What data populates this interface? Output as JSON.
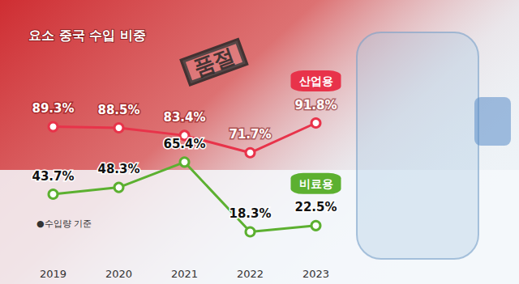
{
  "chart_data": {
    "type": "line",
    "title": "요소 중국 수입 비중",
    "annotations": [
      "●수입량 기준",
      "품절"
    ],
    "categories": [
      "2019",
      "2020",
      "2021",
      "2022",
      "2023"
    ],
    "series": [
      {
        "name": "산업용",
        "color": "#e8334a",
        "values": [
          89.3,
          88.5,
          83.4,
          71.7,
          91.8
        ],
        "value_labels": [
          "89.3%",
          "88.5%",
          "83.4%",
          "71.7%",
          "91.8%"
        ]
      },
      {
        "name": "비료용",
        "color": "#5cb030",
        "values": [
          43.7,
          48.3,
          65.4,
          18.3,
          22.5
        ],
        "value_labels": [
          "43.7%",
          "48.3%",
          "65.4%",
          "18.3%",
          "22.5%"
        ]
      }
    ],
    "ylim": [
      0,
      100
    ],
    "grid": false,
    "data_labels": true,
    "tick_labels": "x",
    "marker": "circle"
  }
}
